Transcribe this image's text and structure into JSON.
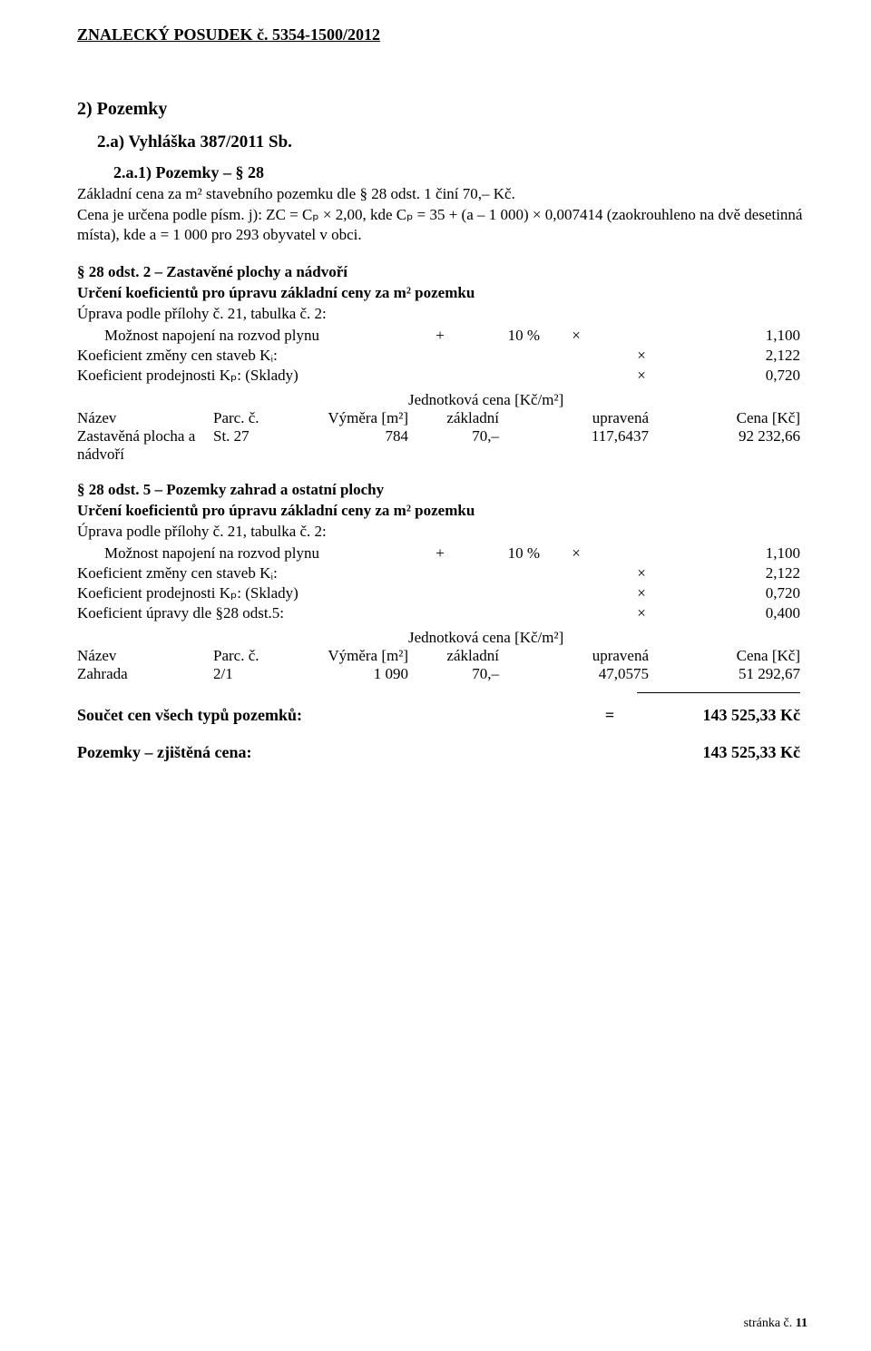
{
  "header": "ZNALECKÝ  POSUDEK č. 5354-1500/2012",
  "h2": "2)  Pozemky",
  "h3": "2.a)  Vyhláška 387/2011 Sb.",
  "h4": "2.a.1)  Pozemky  – § 28",
  "intro_line1": "Základní cena za m² stavebního pozemku dle § 28 odst. 1 činí 70,–  Kč.",
  "intro_line2": "Cena je určena podle písm. j): ZC = Cₚ × 2,00, kde Cₚ = 35 + (a – 1 000) × 0,007414 (zaokrouhleno na dvě desetinná místa), kde a = 1 000 pro 293 obyvatel v obci.",
  "s1": {
    "heading": "§ 28 odst. 2 – Zastavěné plochy a nádvoří",
    "sub": "Určení koeficientů pro úpravu základní ceny za m² pozemku",
    "sub2": "Úprava podle přílohy č. 21, tabulka č. 2:",
    "r1_label": "Možnost napojení na rozvod plynu",
    "r1_plus": "+",
    "r1_pct": "10 %",
    "r1_mult": "×",
    "r1_val": "1,100",
    "r2_label": "Koeficient změny cen staveb Kᵢ:",
    "r2_mult": "×",
    "r2_val": "2,122",
    "r3_label": "Koeficient prodejnosti Kₚ:   (Sklady)",
    "r3_mult": "×",
    "r3_val": "0,720",
    "jedn": "Jednotková cena [Kč/m²]",
    "th_nazev": "Název",
    "th_parc": "Parc. č.",
    "th_vymera": "Výměra [m²]",
    "th_zak": "základní",
    "th_upr": "upravená",
    "th_cena": "Cena [Kč]",
    "d_nazev_a": "Zastavěná plocha a",
    "d_nazev_b": "nádvoří",
    "d_parc": "St. 27",
    "d_vymera": "784",
    "d_zak": "70,–",
    "d_upr": "117,6437",
    "d_cena": "92 232,66"
  },
  "s2": {
    "heading": "§ 28 odst. 5 – Pozemky zahrad a ostatní plochy",
    "sub": "Určení koeficientů pro úpravu základní ceny za m² pozemku",
    "sub2": "Úprava podle přílohy č. 21, tabulka č. 2:",
    "r1_label": "Možnost napojení na rozvod plynu",
    "r1_plus": "+",
    "r1_pct": "10 %",
    "r1_mult": "×",
    "r1_val": "1,100",
    "r2_label": "Koeficient změny cen staveb Kᵢ:",
    "r2_mult": "×",
    "r2_val": "2,122",
    "r3_label": "Koeficient prodejnosti Kₚ:   (Sklady)",
    "r3_mult": "×",
    "r3_val": "0,720",
    "r4_label": "Koeficient úpravy dle §28 odst.5:",
    "r4_mult": "×",
    "r4_val": "0,400",
    "jedn": "Jednotková cena [Kč/m²]",
    "th_nazev": "Název",
    "th_parc": "Parc. č.",
    "th_vymera": "Výměra [m²]",
    "th_zak": "základní",
    "th_upr": "upravená",
    "th_cena": "Cena [Kč]",
    "d_nazev": "Zahrada",
    "d_parc": "2/1",
    "d_vymera": "1 090",
    "d_zak": "70,–",
    "d_upr": "47,0575",
    "d_cena": "51 292,67"
  },
  "sum_label": "Součet cen všech typů pozemků:",
  "sum_eq": "=",
  "sum_val": "143 525,33 Kč",
  "final_label": "Pozemky – zjištěná cena:",
  "final_val": "143 525,33 Kč",
  "footer_a": "stránka č. ",
  "footer_b": "11"
}
